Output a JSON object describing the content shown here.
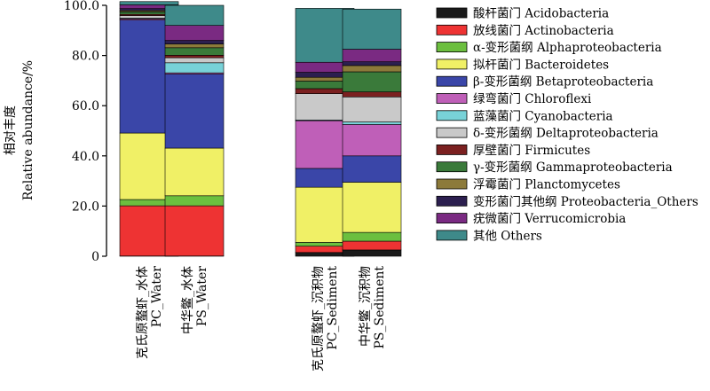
{
  "chart_data": {
    "type": "bar",
    "stacked": true,
    "ylabel_cn": "相对丰度",
    "ylabel_en": "Relative abundance/%",
    "ylim": [
      0,
      100
    ],
    "yticks": [
      "0",
      "20.0",
      "40.0",
      "60.0",
      "80.0",
      "100.0"
    ],
    "categories": [
      {
        "cn": "克氏原螯虾_水体",
        "en": "PC_Water"
      },
      {
        "cn": "中华鳖_水体",
        "en": "PS_Water"
      },
      {
        "cn": "克氏原螯虾_沉积物",
        "en": "PC_Sediment"
      },
      {
        "cn": "中华鳖_沉积物",
        "en": "PS_Sediment"
      }
    ],
    "series": [
      {
        "name": "酸杆菌门 Acidobacteria",
        "color": "#1a1a1a",
        "values": [
          0.1,
          0.1,
          1.5,
          2.5
        ]
      },
      {
        "name": "放线菌门 Actinobacteria",
        "color": "#ee3333",
        "values": [
          20,
          20,
          2.5,
          3.5
        ]
      },
      {
        "name": "α-变形菌纲 Alphaproteobacteria",
        "color": "#6cbf3f",
        "values": [
          2.5,
          4,
          1.5,
          3.5
        ]
      },
      {
        "name": "拟杆菌门 Bacteroidetes",
        "color": "#f0f066",
        "values": [
          26.5,
          19,
          22,
          20
        ]
      },
      {
        "name": "β-变形菌纲 Betaproteobacteria",
        "color": "#3a46a8",
        "values": [
          45,
          29.5,
          7.5,
          10.5
        ]
      },
      {
        "name": "绿弯菌门 Chloroflexi",
        "color": "#bf5fb8",
        "values": [
          0.5,
          0.5,
          19,
          12.5
        ]
      },
      {
        "name": "蓝藻菌门 Cyanobacteria",
        "color": "#78d2d8",
        "values": [
          0.3,
          4,
          0.3,
          1
        ]
      },
      {
        "name": "δ-变形菌纲 Deltaproteobacteria",
        "color": "#c9c9c9",
        "values": [
          1,
          2,
          10.5,
          10
        ]
      },
      {
        "name": "厚壁菌门 Firmicutes",
        "color": "#7b2020",
        "values": [
          0.5,
          1,
          2,
          2
        ]
      },
      {
        "name": "γ-变形菌纲 Gammaproteobacteria",
        "color": "#3a7a3a",
        "values": [
          1,
          3,
          3,
          8
        ]
      },
      {
        "name": "浮霉菌门 Planctomycetes",
        "color": "#8c7a3a",
        "values": [
          0.5,
          1.5,
          1.5,
          2.5
        ]
      },
      {
        "name": "变形菌门其他纲 Proteobacteria_Others",
        "color": "#2c1f4f",
        "values": [
          0.8,
          1.4,
          2,
          1.5
        ]
      },
      {
        "name": "疣微菌门 Verrucomicrobia",
        "color": "#7a2a82",
        "values": [
          1.5,
          6,
          4,
          5
        ]
      },
      {
        "name": "其他 Others",
        "color": "#3e8a8a",
        "values": [
          1.3,
          8,
          21.5,
          16
        ]
      }
    ]
  }
}
